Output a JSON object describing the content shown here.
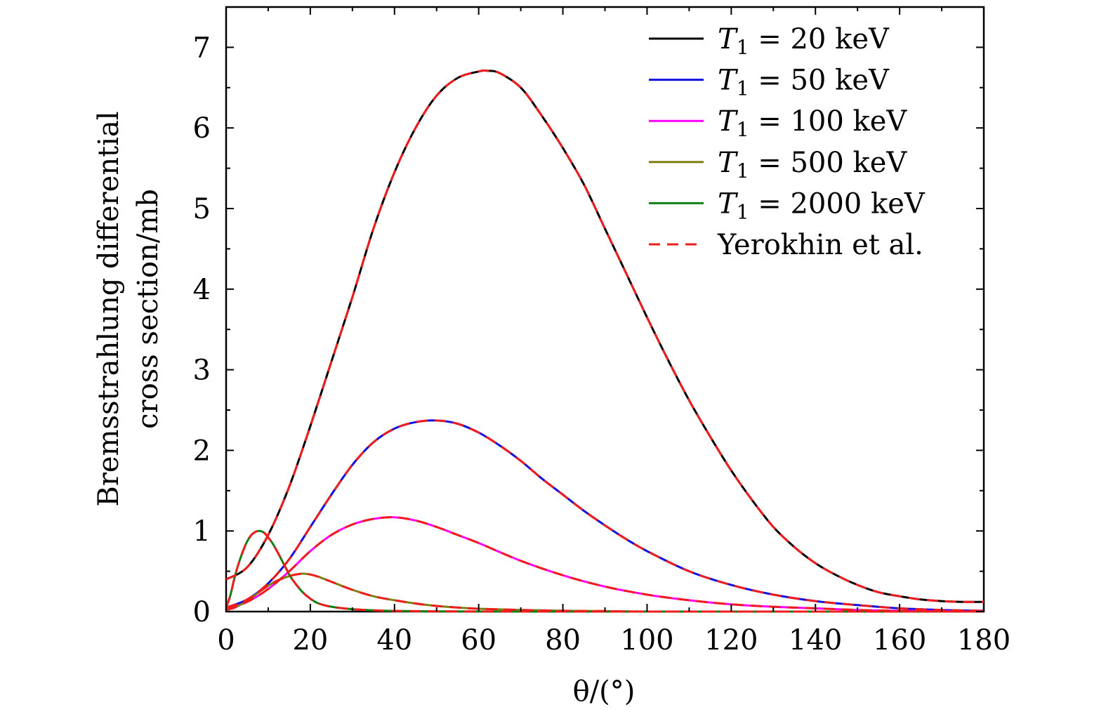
{
  "chart_data": {
    "type": "line",
    "title": "",
    "xlabel": "θ/(°)",
    "ylabel_lines": [
      "Bremsstrahlung differential",
      "cross section/mb"
    ],
    "xlim": [
      0,
      180
    ],
    "ylim": [
      0,
      7.5
    ],
    "xticks": [
      0,
      20,
      40,
      60,
      80,
      100,
      120,
      140,
      160,
      180
    ],
    "xtick_labels": [
      "0",
      "20",
      "40",
      "60",
      "80",
      "100",
      "120",
      "140",
      "160",
      "180"
    ],
    "yticks": [
      0,
      1,
      2,
      3,
      4,
      5,
      6,
      7
    ],
    "ytick_labels": [
      "0",
      "1",
      "2",
      "3",
      "4",
      "5",
      "6",
      "7"
    ],
    "grid": false,
    "legend_position": "top-right",
    "series": [
      {
        "name": "T1 = 20 keV",
        "legend_var": "T",
        "legend_sub": "1",
        "legend_rest": " = 20 keV",
        "color": "#000000",
        "dash": "solid",
        "x": [
          0,
          5,
          10,
          15,
          20,
          25,
          30,
          35,
          40,
          45,
          50,
          55,
          60,
          62,
          65,
          70,
          75,
          80,
          85,
          90,
          95,
          100,
          105,
          110,
          115,
          120,
          125,
          130,
          135,
          140,
          145,
          150,
          155,
          160,
          165,
          170,
          175,
          180
        ],
        "y": [
          0.4,
          0.55,
          0.95,
          1.55,
          2.3,
          3.1,
          3.9,
          4.75,
          5.45,
          6.0,
          6.4,
          6.62,
          6.7,
          6.71,
          6.68,
          6.5,
          6.15,
          5.75,
          5.3,
          4.75,
          4.2,
          3.65,
          3.12,
          2.62,
          2.17,
          1.75,
          1.38,
          1.05,
          0.8,
          0.6,
          0.45,
          0.33,
          0.24,
          0.19,
          0.15,
          0.13,
          0.12,
          0.12
        ]
      },
      {
        "name": "T1 = 50 keV",
        "legend_var": "T",
        "legend_sub": "1",
        "legend_rest": " = 50 keV",
        "color": "#1010e0",
        "dash": "solid",
        "x": [
          0,
          5,
          10,
          15,
          20,
          25,
          30,
          35,
          40,
          45,
          50,
          55,
          60,
          65,
          70,
          75,
          80,
          85,
          90,
          95,
          100,
          110,
          120,
          130,
          140,
          150,
          160,
          170,
          180
        ],
        "y": [
          0.05,
          0.15,
          0.35,
          0.65,
          1.05,
          1.45,
          1.82,
          2.1,
          2.27,
          2.35,
          2.37,
          2.33,
          2.22,
          2.06,
          1.87,
          1.65,
          1.45,
          1.25,
          1.07,
          0.9,
          0.75,
          0.5,
          0.33,
          0.21,
          0.13,
          0.08,
          0.04,
          0.02,
          0.01
        ]
      },
      {
        "name": "T1 = 100 keV",
        "legend_var": "T",
        "legend_sub": "1",
        "legend_rest": " = 100 keV",
        "color": "#ff00ff",
        "dash": "solid",
        "x": [
          0,
          5,
          10,
          15,
          20,
          25,
          30,
          35,
          40,
          45,
          50,
          55,
          60,
          70,
          80,
          90,
          100,
          110,
          120,
          130,
          140,
          150,
          160,
          170,
          180
        ],
        "y": [
          0.03,
          0.12,
          0.28,
          0.5,
          0.75,
          0.95,
          1.08,
          1.15,
          1.17,
          1.13,
          1.05,
          0.95,
          0.85,
          0.63,
          0.45,
          0.31,
          0.21,
          0.14,
          0.09,
          0.06,
          0.04,
          0.02,
          0.01,
          0.005,
          0.0
        ]
      },
      {
        "name": "T1 = 500 keV",
        "legend_var": "T",
        "legend_sub": "1",
        "legend_rest": " = 500 keV",
        "color": "#7f7f10",
        "dash": "solid",
        "x": [
          0,
          2,
          4,
          6,
          8,
          10,
          12,
          15,
          18,
          20,
          22,
          25,
          30,
          35,
          40,
          45,
          50,
          55,
          60,
          70,
          80,
          90,
          100,
          120,
          140,
          160,
          180
        ],
        "y": [
          0.02,
          0.05,
          0.1,
          0.17,
          0.25,
          0.32,
          0.38,
          0.44,
          0.47,
          0.46,
          0.43,
          0.37,
          0.27,
          0.19,
          0.14,
          0.1,
          0.07,
          0.05,
          0.035,
          0.02,
          0.01,
          0.005,
          0.0,
          0.0,
          0.0,
          0.0,
          0.0
        ]
      },
      {
        "name": "T1 = 2000 keV",
        "legend_var": "T",
        "legend_sub": "1",
        "legend_rest": " = 2000 keV",
        "color": "#108010",
        "dash": "solid",
        "x": [
          0,
          1,
          2,
          3,
          4,
          5,
          6,
          7,
          8,
          9,
          10,
          11,
          12,
          13,
          14,
          15,
          16,
          18,
          20,
          22,
          25,
          30,
          35,
          40,
          50,
          60,
          80,
          100,
          140,
          180
        ],
        "y": [
          0.05,
          0.2,
          0.42,
          0.6,
          0.75,
          0.87,
          0.95,
          0.99,
          1.0,
          0.98,
          0.92,
          0.85,
          0.76,
          0.66,
          0.56,
          0.46,
          0.38,
          0.25,
          0.16,
          0.1,
          0.06,
          0.03,
          0.015,
          0.008,
          0.003,
          0.001,
          0.0,
          0.0,
          0.0,
          0.0
        ]
      },
      {
        "name": "Yerokhin et al.",
        "legend_var": "",
        "legend_sub": "",
        "legend_rest": "Yerokhin et al.",
        "color": "#ee1c1c",
        "dash": "dashed",
        "x": [],
        "y": [],
        "overlays": [
          "T1 = 20 keV",
          "T1 = 50 keV",
          "T1 = 100 keV",
          "T1 = 500 keV",
          "T1 = 2000 keV"
        ]
      }
    ]
  }
}
